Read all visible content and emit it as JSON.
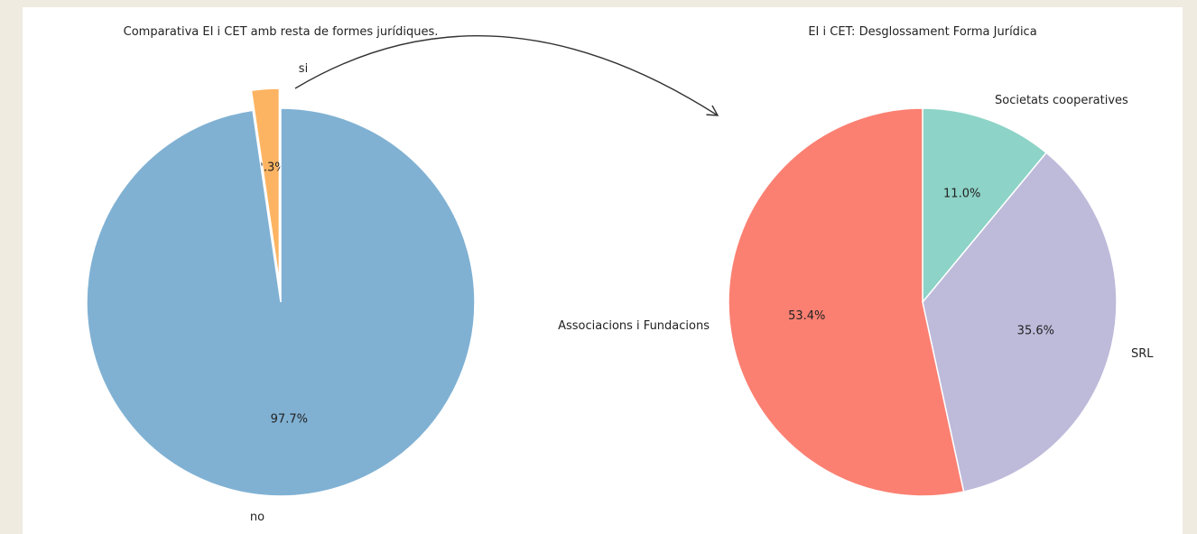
{
  "chart_data": [
    {
      "type": "pie",
      "title": "Comparativa EI i CET amb resta de formes jurídiques.",
      "slices": [
        {
          "label": "si",
          "value": 2.3,
          "display": "2.3%",
          "color": "#fdb462",
          "exploded": true
        },
        {
          "label": "no",
          "value": 97.7,
          "display": "97.7%",
          "color": "#80b1d3",
          "exploded": false
        }
      ]
    },
    {
      "type": "pie",
      "title": "EI i CET: Desglossament Forma Jurídica",
      "slices": [
        {
          "label": "Societats cooperatives",
          "value": 11.0,
          "display": "11.0%",
          "color": "#8dd3c7"
        },
        {
          "label": "SRL",
          "value": 35.6,
          "display": "35.6%",
          "color": "#bebada"
        },
        {
          "label": "Associacions i Fundacions",
          "value": 53.4,
          "display": "53.4%",
          "color": "#fb8072"
        }
      ]
    }
  ]
}
